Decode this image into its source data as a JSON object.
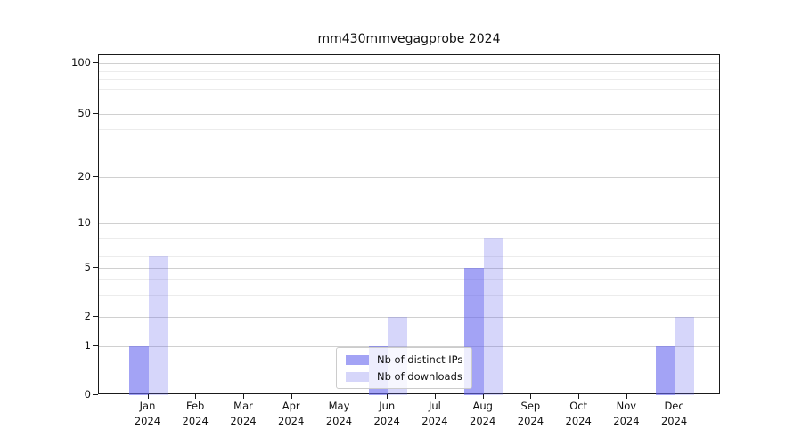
{
  "chart_data": {
    "type": "bar",
    "title": "mm430mmvegagprobe 2024",
    "categories": [
      "Jan",
      "Feb",
      "Mar",
      "Apr",
      "May",
      "Jun",
      "Jul",
      "Aug",
      "Sep",
      "Oct",
      "Nov",
      "Dec"
    ],
    "category_year": "2024",
    "series": [
      {
        "name": "Nb of distinct IPs",
        "color": "rgba(102,102,238,0.6)",
        "values": [
          1,
          0,
          0,
          0,
          0,
          1,
          0,
          5,
          0,
          0,
          0,
          1
        ]
      },
      {
        "name": "Nb of downloads",
        "color": "rgba(102,102,238,0.27)",
        "values": [
          6,
          0,
          0,
          0,
          0,
          2,
          0,
          8,
          0,
          0,
          0,
          2
        ]
      }
    ],
    "xlabel": "",
    "ylabel": "",
    "yscale": "symlog",
    "ylim": [
      0,
      110
    ],
    "y_major_ticks": [
      0,
      1,
      2,
      5,
      10,
      20,
      50,
      100
    ],
    "y_minor_ticks": [
      3,
      4,
      6,
      7,
      8,
      9,
      30,
      40,
      60,
      70,
      80,
      90
    ],
    "grid": true,
    "legend_position": "lower center"
  },
  "colors": {
    "grid_major": "#d0d0d0",
    "grid_minor": "#ececec",
    "spine": "#1a1a1a",
    "background": "#ffffff"
  }
}
